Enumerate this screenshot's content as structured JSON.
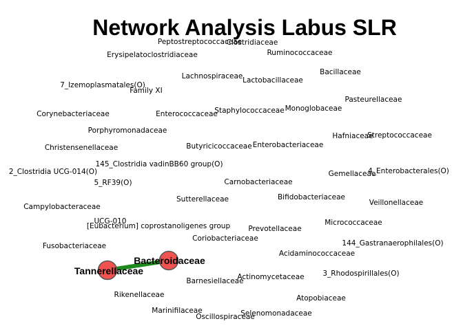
{
  "title": "Network Analysis Labus SLR",
  "colors": {
    "node_fill": "#f0524f",
    "node_stroke": "#555555",
    "edge": "#1f8a1f",
    "background": "#ffffff"
  },
  "edges": [
    {
      "source": "Tannerellaceae",
      "target": "Bacteroidaceae"
    }
  ],
  "nodes": [
    {
      "name": "Tannerellaceae",
      "drawn": true
    },
    {
      "name": "Bacteroidaceae",
      "drawn": true
    }
  ],
  "labels": [
    "Peptostreptococcaceae",
    "Clostridiaceae",
    "Erysipelatoclostridiaceae",
    "Ruminococcaceae",
    "Bacillaceae",
    "Lachnospiraceae",
    "Lactobacillaceae",
    "7_Izemoplasmatales(O)",
    "Family XI",
    "Pasteurellaceae",
    "Monoglobaceae",
    "Corynebacteriaceae",
    "Enterococcaceae",
    "Staphylococcaceae",
    "Porphyromonadaceae",
    "Hafniaceae",
    "Streptococcaceae",
    "Christensenellaceae",
    "Butyricicoccaceae",
    "Enterobacteriaceae",
    "145_Clostridia vadinBB60 group(O)",
    "2_Clostridia UCG-014(O)",
    "Gemellaceae",
    "4_Enterobacterales(O)",
    "5_RF39(O)",
    "Carnobacteriaceae",
    "Bifidobacteriaceae",
    "Sutterellaceae",
    "Campylobacteraceae",
    "Veillonellaceae",
    "UCG-010",
    "[Eubacterium] coprostanoligenes group",
    "Micrococcaceae",
    "Prevotellaceae",
    "Coriobacteriaceae",
    "Fusobacteriaceae",
    "144_Gastranaerophilales(O)",
    "Acidaminococcaceae",
    "Bacteroidaceae",
    "Tannerellaceae",
    "3_Rhodospirillales(O)",
    "Actinomycetaceae",
    "Barnesiellaceae",
    "Rikenellaceae",
    "Atopobiaceae",
    "Marinifilaceae",
    "Selenomonadaceae",
    "Oscillospiraceae"
  ]
}
